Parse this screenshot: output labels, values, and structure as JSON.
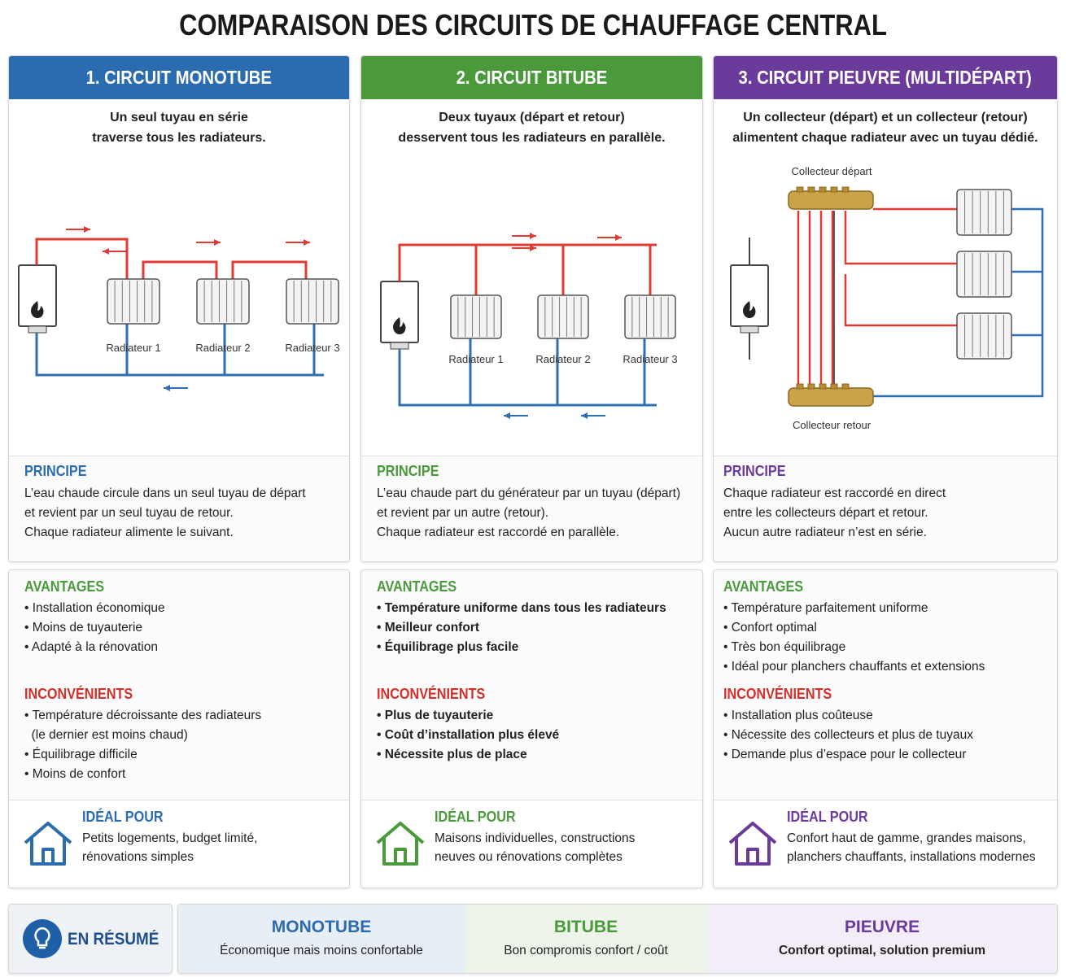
{
  "title": "COMPARAISON DES CIRCUITS DE CHAUFFAGE CENTRAL",
  "columns": [
    {
      "header": "1. CIRCUIT MONOTUBE",
      "subtitle": [
        "Un seul tuyau en série",
        "traverse tous les radiateurs."
      ],
      "diagram_labels": [
        "Radiateur 1",
        "Radiateur 2",
        "Radiateur 3"
      ],
      "principe": {
        "title": "PRINCIPE",
        "lines": [
          "L’eau chaude circule dans un seul tuyau de départ",
          "et revient par un seul tuyau de retour.",
          "Chaque radiateur alimente le suivant."
        ]
      },
      "avantages": {
        "title": "AVANTAGES",
        "items": [
          "• Installation économique",
          "• Moins de tuyauterie",
          "• Adapté à la rénovation"
        ]
      },
      "inconvenients": {
        "title": "INCONVÉNIENTS",
        "items": [
          "• Température décroissante des radiateurs",
          "  (le dernier est moins chaud)",
          "• Équilibrage difficile",
          "• Moins de confort"
        ]
      },
      "ideal": {
        "title": "IDÉAL POUR",
        "lines": [
          "Petits logements, budget limité,",
          "rénovations simples"
        ]
      }
    },
    {
      "header": "2. CIRCUIT BITUBE",
      "subtitle": [
        "Deux tuyaux (départ et retour)",
        "desservent tous les radiateurs en parallèle."
      ],
      "diagram_labels": [
        "Radiateur 1",
        "Radiateur 2",
        "Radiateur 3"
      ],
      "principe": {
        "title": "PRINCIPE",
        "lines": [
          "L’eau chaude part du générateur par un tuyau (départ)",
          "et revient par un autre (retour).",
          "Chaque radiateur est raccordé en parallèle."
        ]
      },
      "avantages": {
        "title": "AVANTAGES",
        "items": [
          "• Température uniforme dans tous les radiateurs",
          "• Meilleur confort",
          "• Équilibrage plus facile"
        ]
      },
      "inconvenients": {
        "title": "INCONVÉNIENTS",
        "items": [
          "• Plus de tuyauterie",
          "• Coût d’installation plus élevé",
          "• Nécessite plus de place"
        ]
      },
      "ideal": {
        "title": "IDÉAL POUR",
        "lines": [
          "Maisons individuelles, constructions",
          "neuves ou rénovations complètes"
        ]
      }
    },
    {
      "header": "3. CIRCUIT PIEUVRE (MULTIDÉPART)",
      "subtitle": [
        "Un collecteur (départ) et un collecteur (retour)",
        "alimentent chaque radiateur avec un tuyau dédié."
      ],
      "diagram_labels": [
        "Collecteur départ",
        "Collecteur retour"
      ],
      "principe": {
        "title": "PRINCIPE",
        "lines": [
          "Chaque radiateur est raccordé en direct",
          "entre les collecteurs départ et retour.",
          "Aucun autre radiateur n’est en série."
        ]
      },
      "avantages": {
        "title": "AVANTAGES",
        "items": [
          "• Température parfaitement uniforme",
          "• Confort optimal",
          "• Très bon équilibrage",
          "• Idéal pour planchers chauffants et extensions"
        ]
      },
      "inconvenients": {
        "title": "INCONVÉNIENTS",
        "items": [
          "• Installation plus coûteuse",
          "• Nécessite des collecteurs et plus de tuyaux",
          "• Demande plus d’espace pour le collecteur"
        ]
      },
      "ideal": {
        "title": "IDÉAL POUR",
        "lines": [
          "Confort haut de gamme, grandes maisons,",
          "planchers chauffants, installations modernes"
        ]
      }
    }
  ],
  "summary": {
    "title": "EN RÉSUMÉ",
    "items": [
      {
        "name": "MONOTUBE",
        "text": "Économique mais moins confortable"
      },
      {
        "name": "BITUBE",
        "text": "Bon compromis confort / coût"
      },
      {
        "name": "PIEUVRE",
        "text": "Confort optimal, solution premium"
      }
    ]
  }
}
